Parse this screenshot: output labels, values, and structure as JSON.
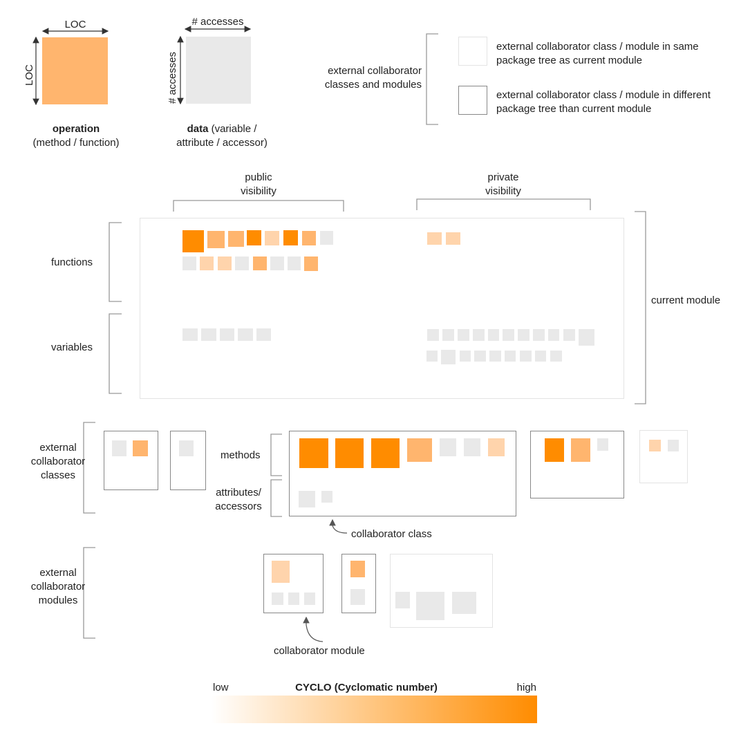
{
  "legend": {
    "operation": {
      "loc_top": "LOC",
      "loc_side": "LOC",
      "title": "operation",
      "subtitle": "(method / function)",
      "color": "#FFB56E"
    },
    "data": {
      "accesses_top": "# accesses",
      "accesses_side": "# accesses",
      "title": "data",
      "title_rest": " (variable /",
      "subtitle": "attribute / accessor)",
      "color": "#E9E9E9"
    },
    "external": {
      "label_line1": "external collaborator",
      "label_line2": "classes and modules",
      "same_line1": "external collaborator class / module in same",
      "same_line2": "package tree as current module",
      "diff_line1": "external collaborator class / module in different",
      "diff_line2": "package tree than current module"
    }
  },
  "visibility": {
    "public_line1": "public",
    "public_line2": "visibility",
    "private_line1": "private",
    "private_line2": "visibility"
  },
  "rows": {
    "functions": "functions",
    "variables": "variables",
    "current_module": "current module",
    "ext_classes_line1": "external",
    "ext_classes_line2": "collaborator",
    "ext_classes_line3": "classes",
    "methods": "methods",
    "attributes_line1": "attributes/",
    "attributes_line2": "accessors",
    "collaborator_class": "collaborator class",
    "ext_modules_line1": "external",
    "ext_modules_line2": "collaborator",
    "ext_modules_line3": "modules",
    "collaborator_module": "collaborator module"
  },
  "scale": {
    "low": "low",
    "title": "CYCLO (Cyclomatic number)",
    "high": "high",
    "color_low": "#FFFFFF",
    "color_high": "#FF8C00"
  },
  "palette": {
    "cyclo_high": "#FF8C00",
    "cyclo_medium": "#FFB56E",
    "cyclo_low": "#FFD4AC",
    "data_grey": "#E9E9E9",
    "border_dark": "#888888",
    "border_light": "#E3E3E3"
  }
}
